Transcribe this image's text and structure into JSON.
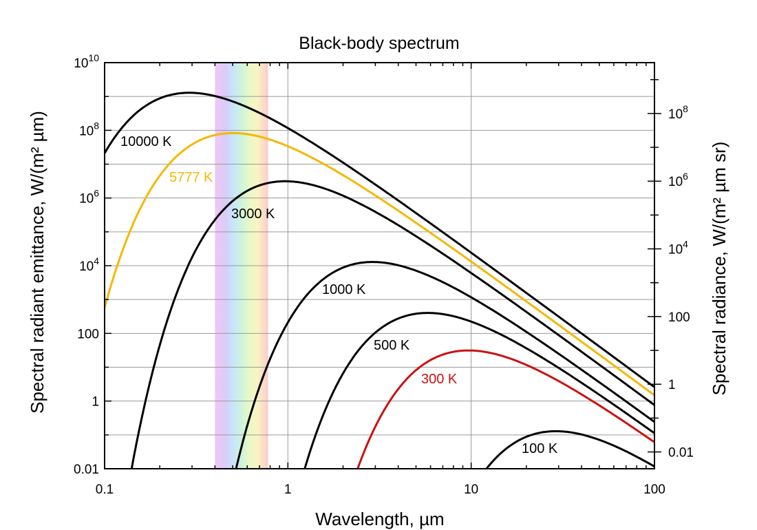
{
  "chart_data": {
    "type": "line",
    "title": "Black-body spectrum",
    "xlabel": "Wavelength, µm",
    "ylabel": "Spectral radiant emittance, W/(m² µm)",
    "ylabel_right": "Spectral radiance, W/(m² µm sr)",
    "x_scale": "log",
    "y_scale": "log",
    "xlim": [
      0.1,
      100
    ],
    "ylim": [
      0.01,
      10000000000
    ],
    "ylim_right": [
      0.003183,
      3183000000
    ],
    "grid": true,
    "visible_band": {
      "label": "visible spectrum",
      "range_um": [
        0.4,
        0.78
      ]
    },
    "x_ticks": [
      {
        "value": 0.1,
        "label": "0.1"
      },
      {
        "value": 1,
        "label": "1"
      },
      {
        "value": 10,
        "label": "10"
      },
      {
        "value": 100,
        "label": "100"
      }
    ],
    "y_ticks_left": [
      {
        "value": 0.01,
        "label": "0.01"
      },
      {
        "value": 1,
        "label": "1"
      },
      {
        "value": 100,
        "label": "100"
      },
      {
        "value": 10000,
        "label": "10",
        "exp": "4"
      },
      {
        "value": 1000000,
        "label": "10",
        "exp": "6"
      },
      {
        "value": 100000000,
        "label": "10",
        "exp": "8"
      },
      {
        "value": 10000000000,
        "label": "10",
        "exp": "10"
      }
    ],
    "y_ticks_right": [
      {
        "value": 0.01,
        "label": "0.01"
      },
      {
        "value": 1,
        "label": "1"
      },
      {
        "value": 100,
        "label": "100"
      },
      {
        "value": 10000,
        "label": "10",
        "exp": "4"
      },
      {
        "value": 1000000,
        "label": "10",
        "exp": "6"
      },
      {
        "value": 100000000,
        "label": "10",
        "exp": "8"
      }
    ],
    "series": [
      {
        "name": "10000 K",
        "temperature_K": 10000,
        "color": "#000000",
        "label": "10000 K"
      },
      {
        "name": "5777 K",
        "temperature_K": 5777,
        "color": "#f5b800",
        "label": "5777 K"
      },
      {
        "name": "3000 K",
        "temperature_K": 3000,
        "color": "#000000",
        "label": "3000 K"
      },
      {
        "name": "1000 K",
        "temperature_K": 1000,
        "color": "#000000",
        "label": "1000 K"
      },
      {
        "name": "500 K",
        "temperature_K": 500,
        "color": "#000000",
        "label": "500 K"
      },
      {
        "name": "300 K",
        "temperature_K": 300,
        "color": "#cc1111",
        "label": "300 K"
      },
      {
        "name": "100 K",
        "temperature_K": 100,
        "color": "#000000",
        "label": "100 K"
      }
    ]
  }
}
